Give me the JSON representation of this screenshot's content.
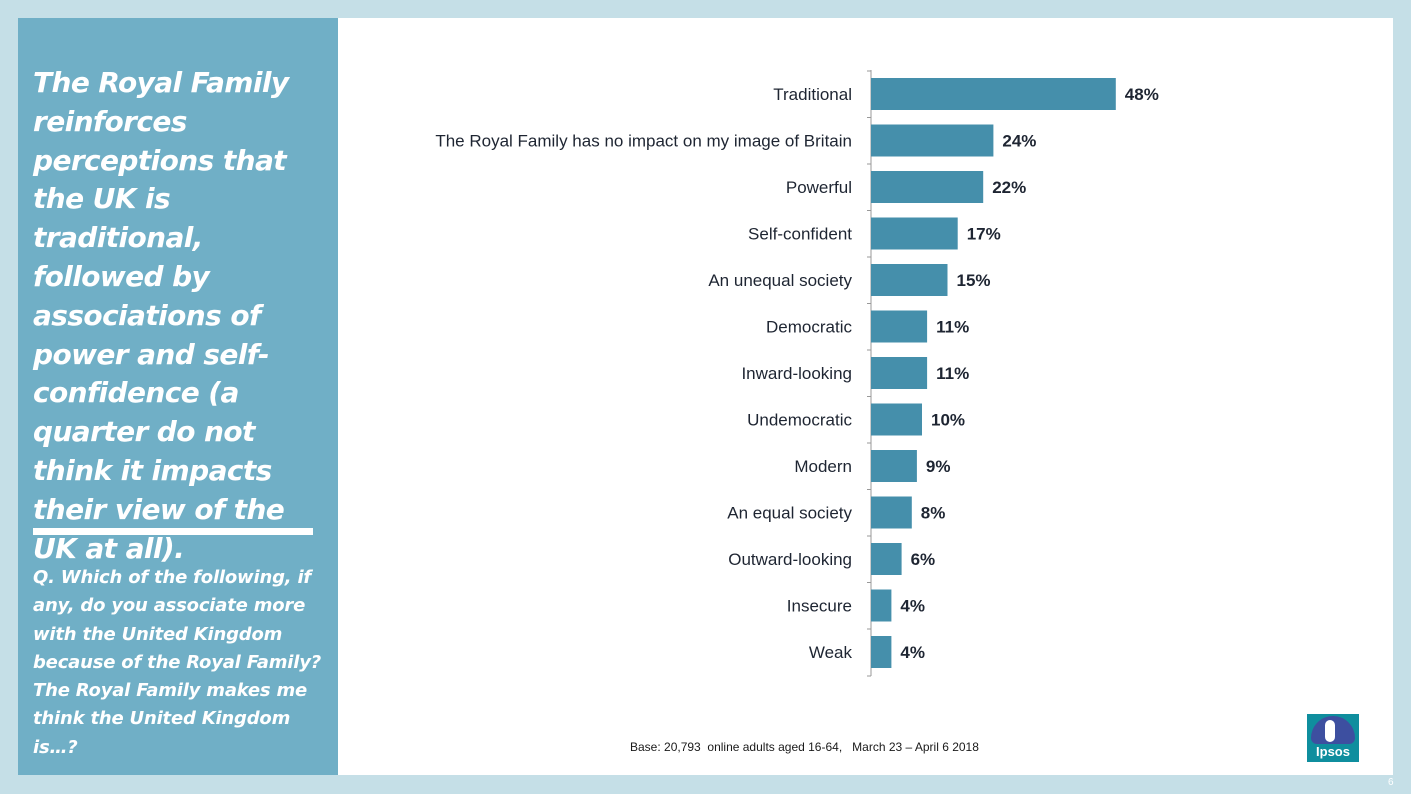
{
  "sidebar": {
    "headline": "The Royal Family reinforces perceptions that the UK is traditional, followed by associations of power and self-confidence (a quarter do not think it impacts their view of the UK at all).",
    "question": "Q. Which of the following, if any, do you associate more with the United Kingdom because of the Royal Family? The Royal Family makes me think the United Kingdom is…?"
  },
  "chart_data": {
    "type": "bar",
    "orientation": "horizontal",
    "categories": [
      "Traditional",
      "The Royal Family has no impact on my image of Britain",
      "Powerful",
      "Self-confident",
      "An unequal society",
      "Democratic",
      "Inward-looking",
      "Undemocratic",
      "Modern",
      "An equal society",
      "Outward-looking",
      "Insecure",
      "Weak"
    ],
    "values": [
      48,
      24,
      22,
      17,
      15,
      11,
      11,
      10,
      9,
      8,
      6,
      4,
      4
    ],
    "value_labels": [
      "48%",
      "24%",
      "22%",
      "17%",
      "15%",
      "11%",
      "11%",
      "10%",
      "9%",
      "8%",
      "6%",
      "4%",
      "4%"
    ],
    "unit": "%",
    "xlim": [
      0,
      100
    ],
    "bar_color": "#458fab",
    "grid": false
  },
  "footer": {
    "base": "Base: 20,793  online adults aged 16-64,   March 23 – April 6 2018",
    "logo_text": "Ipsos",
    "page_number": "6"
  }
}
